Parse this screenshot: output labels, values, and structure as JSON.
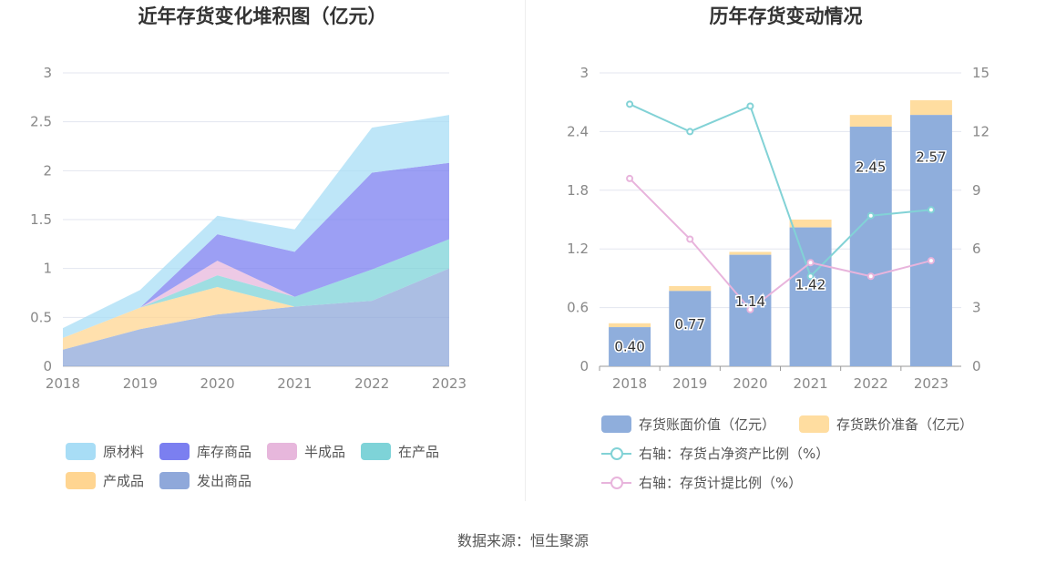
{
  "source_text": "数据来源：恒生聚源",
  "chart_data": [
    {
      "type": "area",
      "stacked": true,
      "title": "近年存货变化堆积图（亿元）",
      "x": [
        "2018",
        "2019",
        "2020",
        "2021",
        "2022",
        "2023"
      ],
      "ylim": [
        0,
        3
      ],
      "yticks": [
        "0",
        "0.5",
        "1",
        "1.5",
        "2",
        "2.5",
        "3"
      ],
      "legend_position": "bottom",
      "series": [
        {
          "name": "发出商品",
          "color": "#8FA8DA",
          "values": [
            0.17,
            0.38,
            0.53,
            0.61,
            0.67,
            1.0
          ]
        },
        {
          "name": "产成品",
          "color": "#FFD591",
          "values": [
            0.12,
            0.22,
            0.28,
            0.0,
            0.0,
            0.0
          ]
        },
        {
          "name": "在产品",
          "color": "#7ED3D8",
          "values": [
            0.0,
            0.0,
            0.12,
            0.1,
            0.32,
            0.3
          ]
        },
        {
          "name": "半成品",
          "color": "#E7B7DC",
          "values": [
            0.0,
            0.0,
            0.15,
            0.0,
            0.0,
            0.0
          ]
        },
        {
          "name": "库存商品",
          "color": "#7B7FF0",
          "values": [
            0.0,
            0.0,
            0.27,
            0.46,
            0.99,
            0.78
          ]
        },
        {
          "name": "原材料",
          "color": "#A8DDF6",
          "values": [
            0.1,
            0.18,
            0.19,
            0.23,
            0.46,
            0.49
          ]
        }
      ],
      "legend_order": [
        "原材料",
        "库存商品",
        "半成品",
        "在产品",
        "产成品",
        "发出商品"
      ]
    },
    {
      "type": "bar",
      "title": "历年存货变动情况",
      "categories": [
        "2018",
        "2019",
        "2020",
        "2021",
        "2022",
        "2023"
      ],
      "ylim": [
        0,
        3
      ],
      "yticks": [
        "0",
        "0.6",
        "1.2",
        "1.8",
        "2.4",
        "3"
      ],
      "y2lim": [
        0,
        15
      ],
      "y2ticks": [
        "0",
        "3",
        "6",
        "9",
        "12",
        "15"
      ],
      "legend_position": "bottom",
      "series": [
        {
          "name": "存货账面价值（亿元）",
          "kind": "bar",
          "color": "#8FAEDC",
          "values": [
            0.4,
            0.77,
            1.14,
            1.42,
            2.45,
            2.57
          ],
          "labels": [
            "0.40",
            "0.77",
            "1.14",
            "1.42",
            "2.45",
            "2.57"
          ]
        },
        {
          "name": "存货跌价准备（亿元）",
          "kind": "bar-stack",
          "color": "#FFDDA0",
          "values": [
            0.04,
            0.05,
            0.03,
            0.08,
            0.12,
            0.15
          ]
        },
        {
          "name": "右轴：存货占净资产比例（%）",
          "kind": "line",
          "axis": "right",
          "color": "#82D2D6",
          "values": [
            13.4,
            12.0,
            13.3,
            4.6,
            7.7,
            8.0
          ]
        },
        {
          "name": "右轴：存货计提比例（%）",
          "kind": "line",
          "axis": "right",
          "color": "#E8B4DC",
          "values": [
            9.6,
            6.5,
            2.9,
            5.3,
            4.6,
            5.4
          ]
        }
      ]
    }
  ]
}
